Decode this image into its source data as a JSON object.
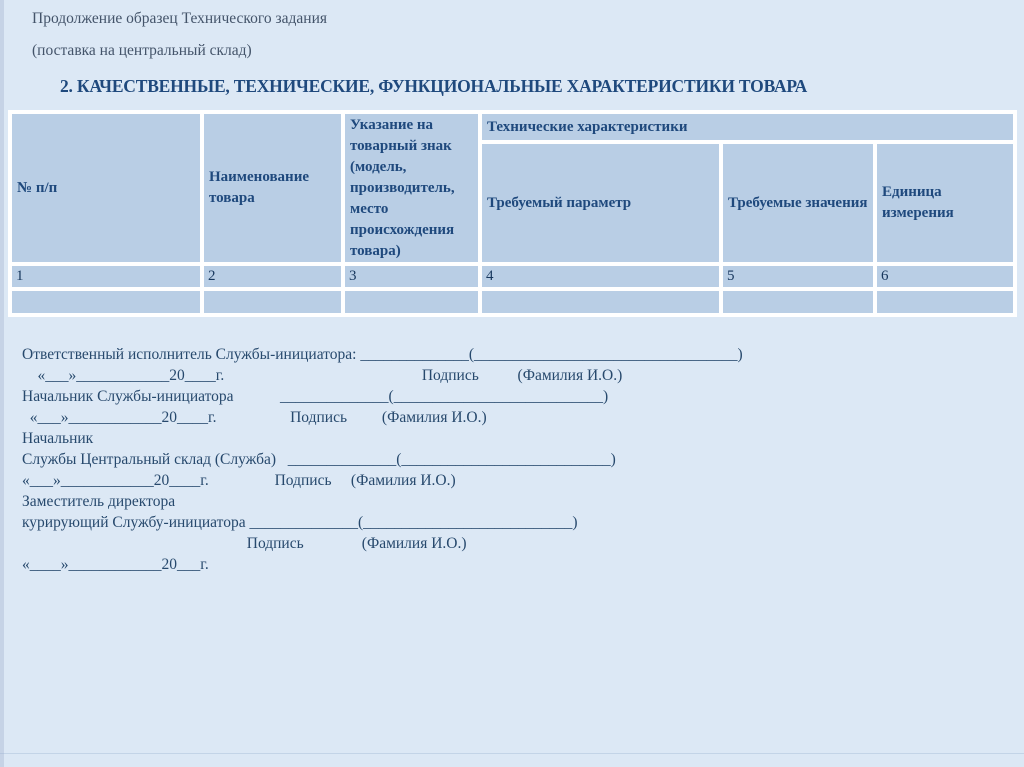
{
  "slide": {
    "header_line1": "Продолжение образец Технического задания",
    "header_line2": "(поставка на центральный склад)",
    "section_title": "2. КАЧЕСТВЕННЫЕ, ТЕХНИЧЕСКИЕ, ФУНКЦИОНАЛЬНЫЕ ХАРАКТЕРИСТИКИ ТОВАРА"
  },
  "colors": {
    "page_background": "#dce8f5",
    "table_cell_fill": "#b9cee5",
    "table_grid_gap": "#ffffff",
    "heading_text": "#1f497d",
    "subtle_text": "#44546a",
    "body_text": "#27496d",
    "number_text": "#17375d"
  },
  "table": {
    "headers": {
      "num": "№ п/п",
      "name": "Наименование товара",
      "trademark": "Указание на товарный знак (модель, производитель, место происхождения товара)",
      "tech_group": "Технические характеристики",
      "param": "Требуемый параметр",
      "values": "Требуемые значения",
      "unit": "Единица измерения"
    },
    "number_row": [
      "1",
      "2",
      "3",
      "4",
      "5",
      "6"
    ]
  },
  "signatures": {
    "lines": [
      "Ответственный исполнитель Службы-инициатора: ______________(__________________________________)",
      "    «___»____________20____г.                                                   Подпись          (Фамилия И.О.)",
      "Начальник Службы-инициатора            ______________(___________________________)",
      "  «___»____________20____г.                   Подпись         (Фамилия И.О.)",
      "Начальник",
      "Службы Центральный склад (Служба)   ______________(___________________________)",
      "«___»____________20____г.                 Подпись     (Фамилия И.О.)",
      "Заместитель директора",
      "курирующий Службу-инициатора ______________(___________________________)",
      "                                                          Подпись               (Фамилия И.О.)",
      "«____»____________20___г."
    ]
  }
}
